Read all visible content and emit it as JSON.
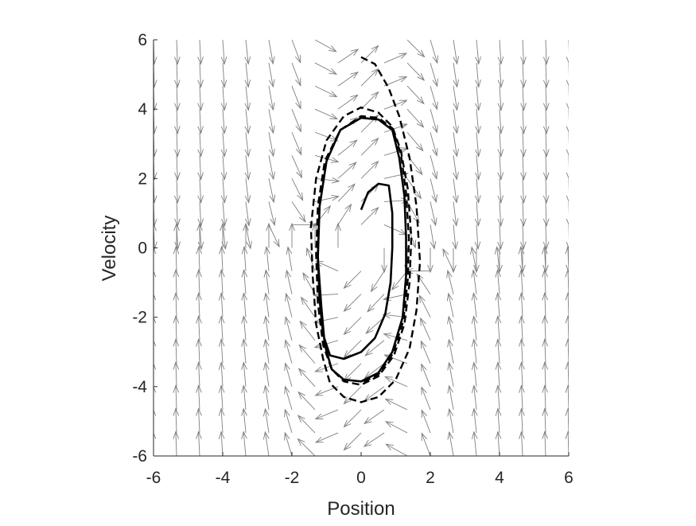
{
  "chart_data": {
    "type": "quiver+line",
    "title": "",
    "xlabel": "Position",
    "ylabel": "Velocity",
    "xlim": [
      -6,
      6
    ],
    "ylim": [
      -6,
      6
    ],
    "xticks": [
      -6,
      -4,
      -2,
      0,
      2,
      4,
      6
    ],
    "yticks": [
      -6,
      -4,
      -2,
      0,
      2,
      4,
      6
    ],
    "xtick_labels": [
      "-6",
      "-4",
      "-2",
      "0",
      "2",
      "4",
      "6"
    ],
    "ytick_labels": [
      "-6",
      "-4",
      "-2",
      "0",
      "2",
      "4",
      "6"
    ],
    "grid": false,
    "legend": "none",
    "colors": {
      "field": "#7f7f7f",
      "trajectory": "#000000",
      "axis": "#262626"
    },
    "vector_field": {
      "equation_hint": "van der Pol type: dx/dt = v, dv/dt = mu(1 - x^2) v - x",
      "mu": 1,
      "x_grid": [
        -6,
        -5.333,
        -4.667,
        -4,
        -3.333,
        -2.667,
        -2,
        -1.333,
        -0.667,
        0,
        0.667,
        1.333,
        2,
        2.667,
        3.333,
        4,
        4.667,
        5.333,
        6
      ],
      "y_grid": [
        -6,
        -5.333,
        -4.667,
        -4,
        -3.333,
        -2.667,
        -2,
        -1.333,
        -0.667,
        0,
        0.667,
        1.333,
        2,
        2.667,
        3.333,
        4,
        4.667,
        5.333,
        6
      ]
    },
    "series": [
      {
        "style": "solid",
        "points": [
          [
            0.0,
            1.1
          ],
          [
            0.2,
            1.6
          ],
          [
            0.5,
            1.85
          ],
          [
            0.8,
            1.8
          ],
          [
            0.9,
            1.0
          ],
          [
            0.9,
            0.0
          ],
          [
            0.85,
            -1.0
          ],
          [
            0.7,
            -1.9
          ],
          [
            0.4,
            -2.6
          ],
          [
            0.0,
            -3.0
          ],
          [
            -0.5,
            -3.2
          ],
          [
            -0.9,
            -3.1
          ],
          [
            -1.1,
            -2.5
          ],
          [
            -1.2,
            -1.5
          ],
          [
            -1.25,
            -0.2
          ],
          [
            -1.2,
            1.2
          ],
          [
            -1.0,
            2.5
          ],
          [
            -0.6,
            3.4
          ],
          [
            0.0,
            3.75
          ],
          [
            0.5,
            3.7
          ],
          [
            0.9,
            3.4
          ],
          [
            1.1,
            2.6
          ],
          [
            1.25,
            1.5
          ],
          [
            1.3,
            0.3
          ],
          [
            1.3,
            -0.8
          ],
          [
            1.2,
            -2.0
          ],
          [
            0.9,
            -3.0
          ],
          [
            0.5,
            -3.6
          ],
          [
            0.0,
            -3.85
          ],
          [
            -0.5,
            -3.8
          ],
          [
            -0.85,
            -3.5
          ],
          [
            -1.05,
            -2.8
          ],
          [
            -1.15,
            -1.7
          ],
          [
            -1.25,
            -0.3
          ],
          [
            -1.2,
            1.2
          ],
          [
            -1.0,
            2.5
          ],
          [
            -0.6,
            3.4
          ],
          [
            0.0,
            3.75
          ],
          [
            0.5,
            3.7
          ],
          [
            0.9,
            3.4
          ],
          [
            1.1,
            2.6
          ],
          [
            1.25,
            1.5
          ],
          [
            1.3,
            0.3
          ],
          [
            1.3,
            -0.8
          ],
          [
            1.2,
            -2.0
          ],
          [
            0.9,
            -3.0
          ],
          [
            0.5,
            -3.6
          ],
          [
            0.0,
            -3.85
          ],
          [
            -0.5,
            -3.8
          ],
          [
            -0.85,
            -3.5
          ]
        ]
      },
      {
        "style": "dashed",
        "points": [
          [
            0.0,
            5.5
          ],
          [
            0.4,
            5.3
          ],
          [
            0.8,
            4.6
          ],
          [
            1.1,
            3.8
          ],
          [
            1.4,
            2.6
          ],
          [
            1.6,
            1.2
          ],
          [
            1.7,
            -0.4
          ],
          [
            1.6,
            -1.8
          ],
          [
            1.4,
            -2.9
          ],
          [
            1.0,
            -3.8
          ],
          [
            0.5,
            -4.3
          ],
          [
            0.0,
            -4.45
          ],
          [
            -0.5,
            -4.3
          ],
          [
            -0.9,
            -3.9
          ],
          [
            -1.1,
            -3.2
          ],
          [
            -1.3,
            -2.2
          ],
          [
            -1.4,
            -0.8
          ],
          [
            -1.45,
            0.6
          ],
          [
            -1.3,
            2.0
          ],
          [
            -1.0,
            3.1
          ],
          [
            -0.5,
            3.8
          ],
          [
            0.0,
            4.05
          ],
          [
            0.5,
            3.9
          ],
          [
            0.9,
            3.5
          ],
          [
            1.15,
            2.8
          ],
          [
            1.35,
            1.7
          ],
          [
            1.45,
            0.3
          ],
          [
            1.4,
            -1.0
          ],
          [
            1.25,
            -2.2
          ],
          [
            0.95,
            -3.1
          ],
          [
            0.5,
            -3.7
          ],
          [
            0.0,
            -3.95
          ],
          [
            -0.5,
            -3.85
          ],
          [
            -0.85,
            -3.5
          ],
          [
            -1.1,
            -2.8
          ],
          [
            -1.25,
            -1.6
          ],
          [
            -1.3,
            -0.2
          ],
          [
            -1.25,
            1.2
          ],
          [
            -1.05,
            2.5
          ],
          [
            -0.6,
            3.4
          ],
          [
            0.0,
            3.8
          ],
          [
            0.5,
            3.75
          ],
          [
            0.9,
            3.45
          ],
          [
            1.15,
            2.7
          ],
          [
            1.3,
            1.6
          ],
          [
            1.38,
            0.3
          ],
          [
            1.35,
            -0.9
          ],
          [
            1.22,
            -2.1
          ],
          [
            0.92,
            -3.05
          ],
          [
            0.5,
            -3.65
          ],
          [
            0.0,
            -3.9
          ]
        ]
      }
    ]
  }
}
